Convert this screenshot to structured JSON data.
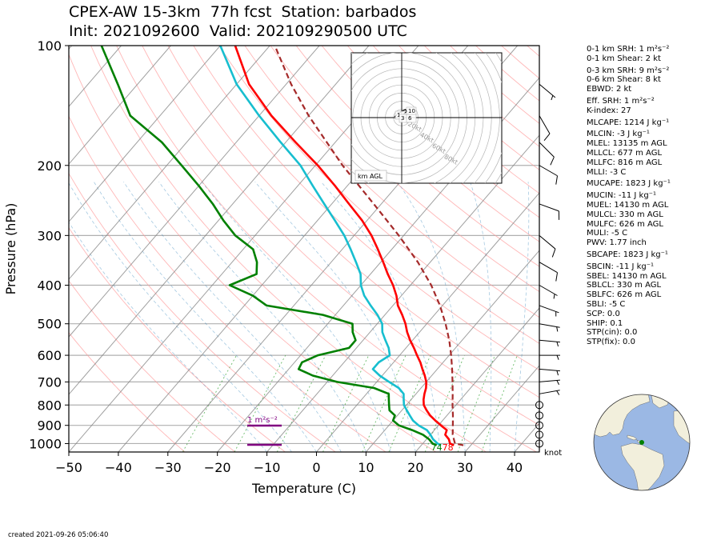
{
  "title_line1": "CPEX-AW 15-3km  77h fcst  Station: barbados",
  "title_line2": "Init: 2021092600  Valid: 202109290500 UTC",
  "created": "created 2021-09-26 05:06:40",
  "indices": [
    {
      "text": "0-1 km SRH: 1 m²s⁻²",
      "gap": false
    },
    {
      "text": "0-1 km Shear: 2 kt",
      "gap": false
    },
    {
      "text": "0-3 km SRH: 9 m²s⁻²",
      "gap": true
    },
    {
      "text": "0-6 km Shear: 8 kt",
      "gap": false
    },
    {
      "text": "EBWD: 2 kt",
      "gap": false
    },
    {
      "text": "Eff. SRH: 1 m²s⁻²",
      "gap": true
    },
    {
      "text": "K-index: 27",
      "gap": false
    },
    {
      "text": "MLCAPE: 1214 J kg⁻¹",
      "gap": true
    },
    {
      "text": "MLCIN: -3 J kg⁻¹",
      "gap": true
    },
    {
      "text": "MLEL: 13135 m AGL",
      "gap": false
    },
    {
      "text": "MLLCL: 677 m AGL",
      "gap": false
    },
    {
      "text": "MLLFC: 816 m AGL",
      "gap": false
    },
    {
      "text": "MLLI: -3 C",
      "gap": false
    },
    {
      "text": "MUCAPE: 1823 J kg⁻¹",
      "gap": true
    },
    {
      "text": "MUCIN: -11 J kg⁻¹",
      "gap": true
    },
    {
      "text": "MUEL: 14130 m AGL",
      "gap": false
    },
    {
      "text": "MULCL: 330 m AGL",
      "gap": false
    },
    {
      "text": "MULFC: 626 m AGL",
      "gap": false
    },
    {
      "text": "MULI: -5 C",
      "gap": false
    },
    {
      "text": "PWV: 1.77 inch",
      "gap": false
    },
    {
      "text": "SBCAPE: 1823 J kg⁻¹",
      "gap": true
    },
    {
      "text": "SBCIN: -11 J kg⁻¹",
      "gap": true
    },
    {
      "text": "SBEL: 14130 m AGL",
      "gap": false
    },
    {
      "text": "SBLCL: 330 m AGL",
      "gap": false
    },
    {
      "text": "SBLFC: 626 m AGL",
      "gap": false
    },
    {
      "text": "SBLI: -5 C",
      "gap": false
    },
    {
      "text": "SCP: 0.0",
      "gap": false
    },
    {
      "text": "SHIP: 0.1",
      "gap": false
    },
    {
      "text": "STP(cin): 0.0",
      "gap": false
    },
    {
      "text": "STP(fix): 0.0",
      "gap": false
    }
  ],
  "colors": {
    "temperature": "#ff0000",
    "dewpoint": "#008000",
    "wetbulb": "#17becf",
    "parcel": "#a52a2a",
    "dry_adiabat": "#ff9999",
    "moist_adiabat": "#1f77b4",
    "mixing_ratio": "#2ca02c",
    "isotherm": "#808080",
    "srh_bar": "#800080"
  },
  "chart_data": {
    "type": "line",
    "subtype": "skew-T log-p",
    "xlabel": "Temperature (C)",
    "ylabel": "Pressure (hPa)",
    "xlim": [
      -50,
      45
    ],
    "ylim": [
      1050,
      100
    ],
    "y_log": true,
    "xticks": [
      -50,
      -40,
      -30,
      -20,
      -10,
      0,
      10,
      20,
      30,
      40
    ],
    "yticks": [
      100,
      200,
      300,
      400,
      500,
      600,
      700,
      800,
      900,
      1000
    ],
    "grid": true,
    "series": [
      {
        "key": "temperature",
        "p": [
          1010,
          1000,
          975,
          950,
          925,
          900,
          875,
          850,
          825,
          800,
          775,
          750,
          725,
          700,
          675,
          650,
          625,
          600,
          575,
          550,
          525,
          500,
          475,
          450,
          425,
          400,
          375,
          350,
          325,
          300,
          275,
          250,
          225,
          200,
          175,
          150,
          125,
          100
        ],
        "t": [
          26.6,
          25.5,
          24.5,
          23.0,
          22.5,
          20.5,
          18.5,
          16.6,
          15.0,
          13.5,
          12.5,
          11.7,
          11.0,
          10.0,
          8.6,
          7.0,
          5.4,
          3.5,
          1.6,
          -0.5,
          -2.5,
          -4.3,
          -6.5,
          -9.0,
          -11.0,
          -13.5,
          -16.5,
          -19.5,
          -22.8,
          -26.5,
          -31.0,
          -36.5,
          -42.5,
          -49.5,
          -58.0,
          -67.5,
          -77.5,
          -87.0
        ]
      },
      {
        "key": "dewpoint",
        "p": [
          1010,
          1000,
          975,
          950,
          925,
          900,
          875,
          850,
          825,
          800,
          775,
          750,
          725,
          700,
          675,
          650,
          625,
          600,
          575,
          550,
          525,
          500,
          475,
          450,
          425,
          400,
          375,
          350,
          325,
          300,
          275,
          250,
          225,
          200,
          175,
          150,
          125,
          100
        ],
        "t": [
          23.1,
          22.0,
          20.5,
          18.5,
          15.5,
          12.0,
          10.0,
          9.5,
          7.5,
          6.5,
          5.5,
          4.5,
          0.5,
          -8.0,
          -14.0,
          -18.0,
          -18.5,
          -16.5,
          -11.5,
          -11.5,
          -13.5,
          -15.0,
          -22.5,
          -35.5,
          -40.0,
          -46.5,
          -43.0,
          -45.0,
          -48.0,
          -54.0,
          -59.0,
          -64.0,
          -70.0,
          -77.0,
          -85.0,
          -96.0,
          -104.0,
          -114.0
        ]
      },
      {
        "key": "wetbulb",
        "p": [
          1010,
          1000,
          975,
          950,
          925,
          900,
          875,
          850,
          825,
          800,
          775,
          750,
          725,
          700,
          675,
          650,
          625,
          600,
          575,
          550,
          525,
          500,
          475,
          450,
          425,
          400,
          375,
          350,
          325,
          300,
          275,
          250,
          225,
          200,
          175,
          150,
          125,
          100
        ],
        "t": [
          24.0,
          23.0,
          21.3,
          20.0,
          18.5,
          16.0,
          14.0,
          12.5,
          11.0,
          9.5,
          8.5,
          7.5,
          5.5,
          2.5,
          -0.5,
          -3.0,
          -3.0,
          -2.0,
          -3.5,
          -5.5,
          -7.5,
          -9.0,
          -11.5,
          -14.5,
          -17.5,
          -20.0,
          -22.0,
          -25.0,
          -28.3,
          -32.0,
          -36.5,
          -41.5,
          -47.0,
          -53.0,
          -61.0,
          -70.0,
          -80.0,
          -90.0
        ]
      },
      {
        "key": "parcel",
        "dashed": true,
        "p": [
          1010,
          1000,
          950,
          900,
          850,
          800,
          750,
          700,
          650,
          600,
          550,
          500,
          450,
          400,
          350,
          300,
          250,
          200,
          150,
          125,
          100
        ],
        "t": [
          28.5,
          26.5,
          24.5,
          22.9,
          21.2,
          19.3,
          17.4,
          15.3,
          13.0,
          10.4,
          7.4,
          3.8,
          -0.5,
          -5.8,
          -12.5,
          -21.0,
          -31.5,
          -44.5,
          -60.0,
          -69.0,
          -79.0
        ]
      }
    ],
    "sfc_labels": [
      {
        "text": "74",
        "key": "dewpoint"
      },
      {
        "text": "78",
        "key": "temperature"
      }
    ],
    "srh_label": "1 m²s⁻²",
    "wind_unit_label": "knot",
    "wind_barbs": {
      "calm_pressures": [
        1000,
        950,
        900,
        850,
        800
      ],
      "barbs": [
        {
          "p": 750,
          "spd": 5,
          "dir": 80
        },
        {
          "p": 700,
          "spd": 5,
          "dir": 85
        },
        {
          "p": 650,
          "spd": 5,
          "dir": 95
        },
        {
          "p": 600,
          "spd": 5,
          "dir": 90
        },
        {
          "p": 550,
          "spd": 5,
          "dir": 95
        },
        {
          "p": 500,
          "spd": 5,
          "dir": 100
        },
        {
          "p": 450,
          "spd": 5,
          "dir": 110
        },
        {
          "p": 400,
          "spd": 5,
          "dir": 120
        },
        {
          "p": 350,
          "spd": 10,
          "dir": 120
        },
        {
          "p": 300,
          "spd": 10,
          "dir": 130
        },
        {
          "p": 250,
          "spd": 10,
          "dir": 110
        },
        {
          "p": 200,
          "spd": 10,
          "dir": 120
        },
        {
          "p": 175,
          "spd": 10,
          "dir": 135
        },
        {
          "p": 150,
          "spd": 10,
          "dir": 150
        },
        {
          "p": 125,
          "spd": 5,
          "dir": 130
        }
      ]
    },
    "hodograph": {
      "ring_labels": [
        "20kt",
        "40kt",
        "60kt",
        "80kt"
      ],
      "height_label": "km AGL",
      "marker_labels": [
        "10",
        "1",
        "3",
        "6"
      ],
      "u": [
        0.5,
        1.5,
        3.0,
        2.0,
        0.0,
        -2.0,
        -4.0
      ],
      "v": [
        1.0,
        2.5,
        3.5,
        4.5,
        3.5,
        2.0,
        0.5
      ]
    }
  }
}
